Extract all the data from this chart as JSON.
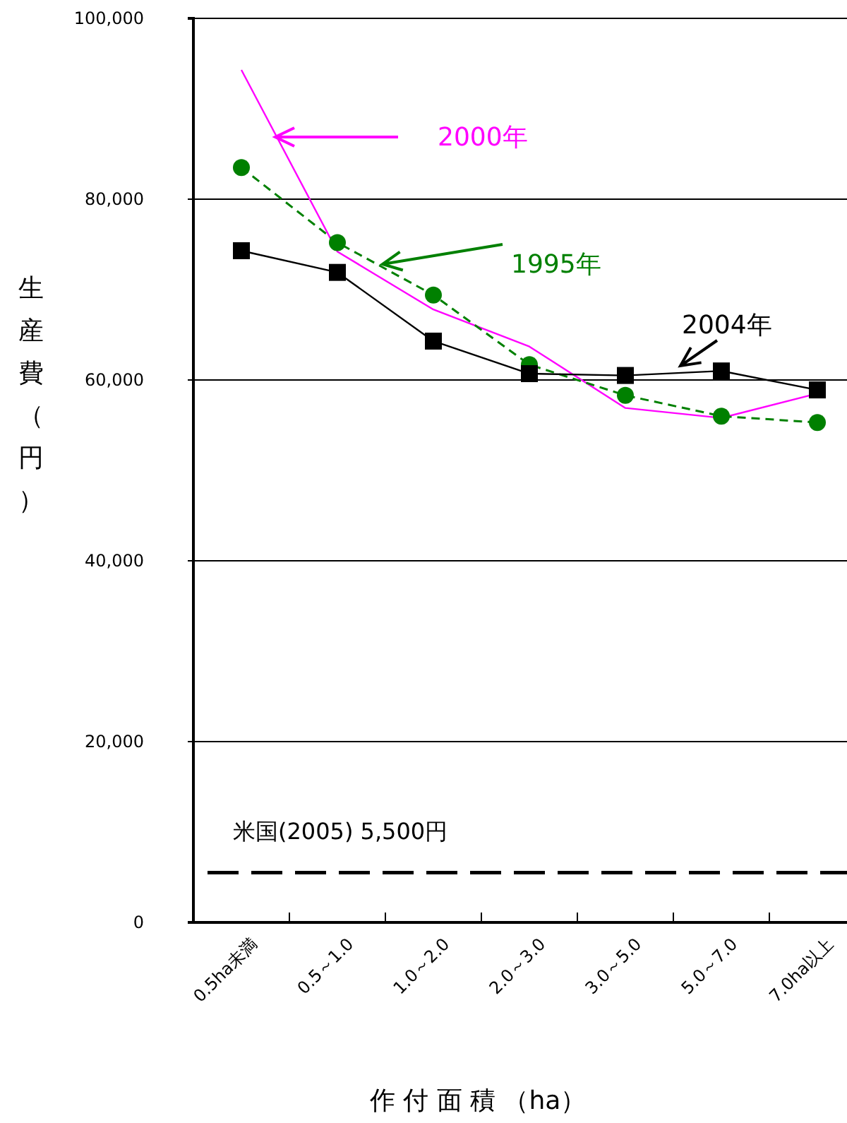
{
  "chart_data": {
    "type": "line",
    "xlabel": "作 付 面 積 （ha）",
    "ylabel": "生産費（円）",
    "categories": [
      "0.5ha未満",
      "0.5～1.0",
      "1.0～2.0",
      "2.0～3.0",
      "3.0～5.0",
      "5.0～7.0",
      "7.0ha以上"
    ],
    "series": [
      {
        "name": "2000年",
        "color": "#ff00ff",
        "marker": "none",
        "line_style": "solid",
        "values": [
          94300,
          74200,
          67800,
          63700,
          56900,
          55800,
          58500
        ]
      },
      {
        "name": "1995年",
        "color": "#008000",
        "marker": "circle",
        "line_style": "dashed",
        "values": [
          83500,
          75200,
          69400,
          61700,
          58300,
          56000,
          55300
        ]
      },
      {
        "name": "2004年",
        "color": "#000000",
        "marker": "square",
        "line_style": "solid",
        "values": [
          74300,
          71900,
          64300,
          60700,
          60500,
          61000,
          58900
        ]
      }
    ],
    "ylim": [
      0,
      100000
    ],
    "yticks": [
      {
        "value": 0,
        "label": "0"
      },
      {
        "value": 20000,
        "label": "20,000"
      },
      {
        "value": 40000,
        "label": "40,000"
      },
      {
        "value": 60000,
        "label": "60,000"
      },
      {
        "value": 80000,
        "label": "80,000"
      },
      {
        "value": 100000,
        "label": "100,000"
      }
    ],
    "grid": "y",
    "legend": "top",
    "ref_lines": [
      {
        "axis": "y",
        "value": 5500,
        "label": "米国(2005)  5,500円",
        "color": "#000000",
        "line_style": "dashed"
      }
    ]
  }
}
